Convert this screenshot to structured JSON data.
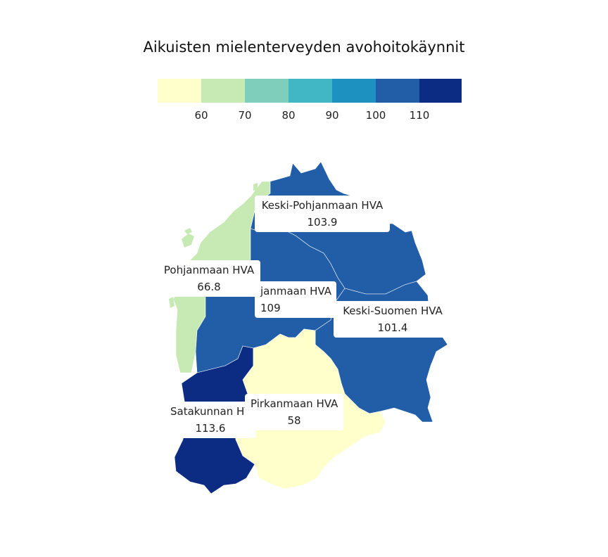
{
  "title": "Aikuisten mielenterveyden avohoitokäynnit",
  "legend": {
    "colors": [
      "#ffffcc",
      "#c7e9b4",
      "#7fcdbb",
      "#41b6c4",
      "#1d91c0",
      "#225ea8",
      "#0c2c84"
    ],
    "ticks": [
      "60",
      "70",
      "80",
      "90",
      "100",
      "110"
    ]
  },
  "regions": [
    {
      "name": "Keski-Pohjanmaan HVA",
      "value": "103.9",
      "color": "#225ea8"
    },
    {
      "name": "Pohjanmaan HVA",
      "value": "66.8",
      "color": "#c7e9b4"
    },
    {
      "name": "janmaan HVA",
      "value": "109",
      "color": "#225ea8"
    },
    {
      "name": "Keski-Suomen HVA",
      "value": "101.4",
      "color": "#225ea8"
    },
    {
      "name": "Satakunnan HV",
      "value": "113.6",
      "color": "#0c2c84"
    },
    {
      "name": "Pirkanmaan HVA",
      "value": "58",
      "color": "#ffffcc"
    }
  ]
}
